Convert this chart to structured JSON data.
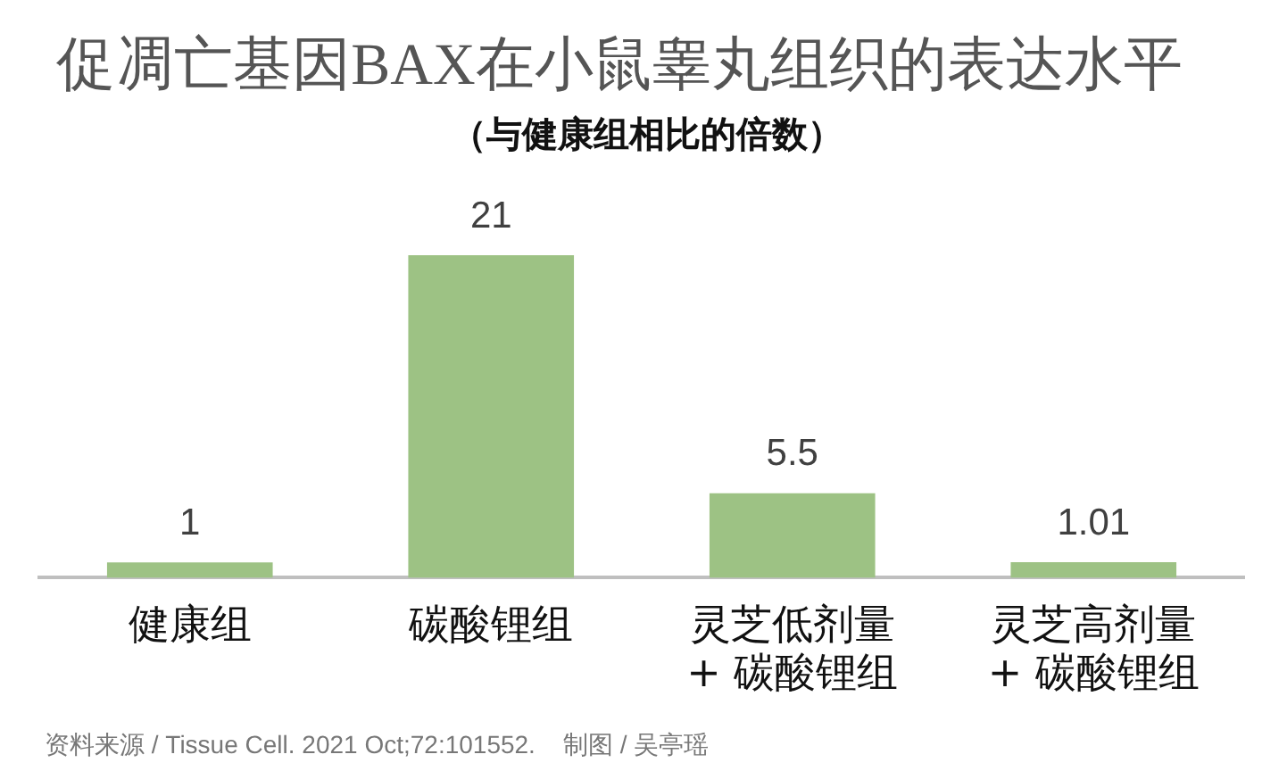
{
  "chart_data": {
    "type": "bar",
    "title": "促凋亡基因BAX在小鼠睾丸组织的表达水平",
    "subtitle": "（与健康组相比的倍数）",
    "categories": [
      "健康组",
      "碳酸锂组",
      "灵芝低剂量\n+ 碳酸锂组",
      "灵芝高剂量\n+ 碳酸锂组"
    ],
    "values": [
      1,
      21,
      5.5,
      1.01
    ],
    "color": "#9dc284",
    "data_labels": true,
    "tick_labels": "x",
    "annotations": [
      "资料来源 / Tissue Cell. 2021 Oct;72:101552.    制图 / 吴亭瑶"
    ]
  }
}
